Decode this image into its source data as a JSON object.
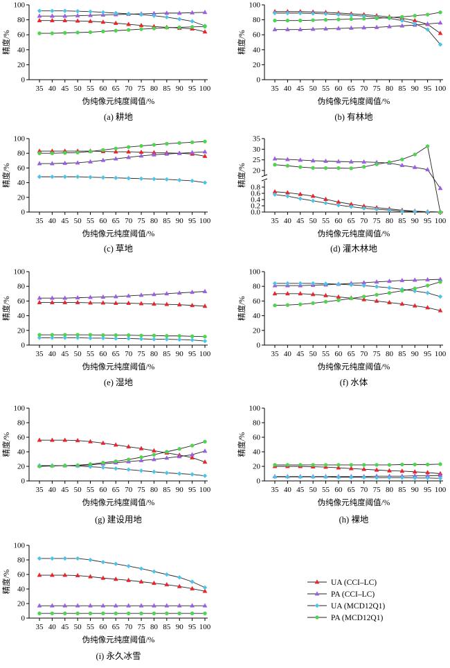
{
  "xlabel": "伪纯像元纯度阈值/%",
  "ylabel": "精度/%",
  "legend": [
    {
      "name": "UA (CCI–LC)",
      "color": "#e8242d",
      "marker": "triangle"
    },
    {
      "name": "PA (CCI–LC)",
      "color": "#9b5de5",
      "marker": "triangle"
    },
    {
      "name": "UA (MCD12Q1)",
      "color": "#4dc3e6",
      "marker": "diamond"
    },
    {
      "name": "PA (MCD12Q1)",
      "color": "#4fd44f",
      "marker": "circle"
    }
  ],
  "chart_data": [
    {
      "type": "line",
      "caption": "(a) 耕地",
      "x": [
        35,
        40,
        45,
        50,
        55,
        60,
        65,
        70,
        75,
        80,
        85,
        90,
        95,
        100
      ],
      "ylim": [
        0,
        100
      ],
      "yticks": [
        0,
        20,
        40,
        60,
        80,
        100
      ],
      "series": [
        {
          "name": "UA (CCI–LC)",
          "values": [
            79,
            79,
            79,
            78.5,
            78,
            77,
            75.5,
            74,
            72.5,
            71,
            70,
            69,
            68,
            64
          ]
        },
        {
          "name": "PA (CCI–LC)",
          "values": [
            85,
            85,
            85,
            85.5,
            86,
            86.5,
            87,
            87.5,
            88,
            88.5,
            89,
            89,
            89.5,
            90
          ]
        },
        {
          "name": "UA (MCD12Q1)",
          "values": [
            92,
            92,
            92,
            91.5,
            91,
            90,
            89,
            88,
            87,
            85.5,
            83.5,
            81,
            78,
            72
          ]
        },
        {
          "name": "PA (MCD12Q1)",
          "values": [
            62,
            62,
            62.5,
            63,
            63.5,
            64.5,
            65.5,
            66.5,
            67.5,
            68.5,
            69.5,
            70,
            70.5,
            71
          ]
        }
      ]
    },
    {
      "type": "line",
      "caption": "(b) 有林地",
      "x": [
        35,
        40,
        45,
        50,
        55,
        60,
        65,
        70,
        75,
        80,
        85,
        90,
        95,
        100
      ],
      "ylim": [
        0,
        100
      ],
      "yticks": [
        0,
        20,
        40,
        60,
        80,
        100
      ],
      "series": [
        {
          "name": "UA (CCI–LC)",
          "values": [
            91,
            91,
            91,
            90.5,
            90,
            89,
            88,
            87,
            85.5,
            84,
            82,
            79,
            74,
            62
          ]
        },
        {
          "name": "PA (CCI–LC)",
          "values": [
            67,
            67,
            67,
            67.5,
            68,
            68.5,
            69,
            69.5,
            70,
            71,
            72,
            73,
            74.5,
            76
          ]
        },
        {
          "name": "UA (MCD12Q1)",
          "values": [
            89,
            89,
            89,
            88.5,
            88,
            87,
            86,
            85,
            83.5,
            82,
            79,
            75,
            67,
            47
          ]
        },
        {
          "name": "PA (MCD12Q1)",
          "values": [
            79,
            79,
            79,
            79.5,
            80,
            80.5,
            81,
            81.5,
            82,
            83,
            84,
            85.5,
            87,
            90
          ]
        }
      ]
    },
    {
      "type": "line",
      "caption": "(c) 草地",
      "x": [
        35,
        40,
        45,
        50,
        55,
        60,
        65,
        70,
        75,
        80,
        85,
        90,
        95,
        100
      ],
      "ylim": [
        0,
        100
      ],
      "yticks": [
        0,
        20,
        40,
        60,
        80,
        100
      ],
      "series": [
        {
          "name": "UA (CCI–LC)",
          "values": [
            83,
            83,
            83,
            83,
            83,
            82.5,
            82,
            82,
            81.5,
            81,
            80.5,
            80,
            79,
            76
          ]
        },
        {
          "name": "PA (CCI–LC)",
          "values": [
            66,
            66,
            66.5,
            67,
            68.5,
            70.5,
            72.5,
            74.5,
            76.5,
            78,
            79,
            80,
            81,
            82
          ]
        },
        {
          "name": "UA (MCD12Q1)",
          "values": [
            48,
            48,
            48,
            48,
            47.5,
            47,
            46.5,
            46,
            45.5,
            45,
            44.5,
            43.5,
            42.5,
            40
          ]
        },
        {
          "name": "PA (MCD12Q1)",
          "values": [
            80,
            80,
            80.5,
            81,
            82.5,
            84.5,
            86.5,
            88.5,
            90,
            91.5,
            93,
            94,
            95,
            96
          ]
        }
      ]
    },
    {
      "type": "line",
      "caption": "(d) 灌木林地",
      "x": [
        35,
        40,
        45,
        50,
        55,
        60,
        65,
        70,
        75,
        80,
        85,
        90,
        95,
        100
      ],
      "broken_y_axis": true,
      "lower_ylim": [
        0,
        0.8
      ],
      "lower_yticks": [
        0,
        0.2,
        0.4,
        0.6,
        0.8
      ],
      "upper_ylim": [
        20,
        35
      ],
      "upper_yticks": [
        20,
        25,
        30,
        35
      ],
      "series": [
        {
          "name": "UA (CCI–LC)",
          "values": [
            0.65,
            0.62,
            0.57,
            0.51,
            0.41,
            0.32,
            0.25,
            0.19,
            0.14,
            0.1,
            0.06,
            0.03,
            0.01,
            0.0
          ]
        },
        {
          "name": "PA (CCI–LC)",
          "values": [
            25.5,
            25.2,
            24.9,
            24.6,
            24.4,
            24.2,
            24.1,
            24,
            23.8,
            23.5,
            22.4,
            21.5,
            20.4,
            0.76
          ]
        },
        {
          "name": "UA (MCD12Q1)",
          "values": [
            0.56,
            0.51,
            0.43,
            0.36,
            0.29,
            0.22,
            0.17,
            0.12,
            0.09,
            0.06,
            0.03,
            0.02,
            0.01,
            0.0
          ]
        },
        {
          "name": "PA (MCD12Q1)",
          "values": [
            22.7,
            22.2,
            21.6,
            21.2,
            21.1,
            21.1,
            21,
            21.7,
            22.9,
            23.9,
            25.2,
            27.5,
            31.4,
            0.0
          ]
        }
      ]
    },
    {
      "type": "line",
      "caption": "(e) 湿地",
      "x": [
        35,
        40,
        45,
        50,
        55,
        60,
        65,
        70,
        75,
        80,
        85,
        90,
        95,
        100
      ],
      "ylim": [
        0,
        100
      ],
      "yticks": [
        0,
        20,
        40,
        60,
        80,
        100
      ],
      "series": [
        {
          "name": "UA (CCI–LC)",
          "values": [
            58,
            58,
            58,
            58,
            57.5,
            57.5,
            57,
            57,
            56.5,
            56,
            55.5,
            55,
            54,
            53
          ]
        },
        {
          "name": "PA (CCI–LC)",
          "values": [
            64,
            64,
            64,
            64.5,
            65,
            65.5,
            66,
            67,
            68,
            69,
            70,
            71,
            72,
            73
          ]
        },
        {
          "name": "UA (MCD12Q1)",
          "values": [
            10,
            10,
            10,
            10,
            9.5,
            9.5,
            9,
            9,
            8.5,
            8,
            8,
            7.5,
            7,
            5.5
          ]
        },
        {
          "name": "PA (MCD12Q1)",
          "values": [
            14,
            14,
            14,
            14,
            14,
            13.5,
            13.5,
            13.5,
            13,
            13,
            12.5,
            12.5,
            12,
            11.5
          ]
        }
      ]
    },
    {
      "type": "line",
      "caption": "(f) 水体",
      "x": [
        35,
        40,
        45,
        50,
        55,
        60,
        65,
        70,
        75,
        80,
        85,
        90,
        95,
        100
      ],
      "ylim": [
        0,
        100
      ],
      "yticks": [
        0,
        20,
        40,
        60,
        80,
        100
      ],
      "series": [
        {
          "name": "UA (CCI–LC)",
          "values": [
            70,
            70,
            70,
            69,
            67.5,
            65.5,
            64,
            62,
            60,
            58,
            56,
            53.5,
            51,
            47
          ]
        },
        {
          "name": "PA (CCI–LC)",
          "values": [
            81,
            81,
            81,
            81.5,
            82,
            83,
            84,
            85,
            86,
            87,
            88,
            88.5,
            89,
            89.5
          ]
        },
        {
          "name": "UA (MCD12Q1)",
          "values": [
            84,
            84,
            84,
            84,
            83.5,
            83,
            82,
            81,
            79.5,
            78,
            76,
            73.5,
            71,
            66
          ]
        },
        {
          "name": "PA (MCD12Q1)",
          "values": [
            54,
            54.5,
            55.5,
            57,
            59,
            61,
            63.5,
            66,
            68.5,
            71,
            74,
            77,
            81,
            86
          ]
        }
      ]
    },
    {
      "type": "line",
      "caption": "(g) 建设用地",
      "x": [
        35,
        40,
        45,
        50,
        55,
        60,
        65,
        70,
        75,
        80,
        85,
        90,
        95,
        100
      ],
      "ylim": [
        0,
        100
      ],
      "yticks": [
        0,
        20,
        40,
        60,
        80,
        100
      ],
      "series": [
        {
          "name": "UA (CCI–LC)",
          "values": [
            56,
            56,
            56,
            55.5,
            54,
            52,
            49.5,
            47,
            44.5,
            41.5,
            38.5,
            35.5,
            32,
            26
          ]
        },
        {
          "name": "PA (CCI–LC)",
          "values": [
            21,
            21,
            21,
            21,
            22,
            23.5,
            25,
            26.5,
            28,
            29.5,
            31.5,
            33.5,
            36,
            41
          ]
        },
        {
          "name": "UA (MCD12Q1)",
          "values": [
            21,
            21,
            21,
            20.5,
            19.5,
            18.5,
            17,
            15.5,
            14,
            12.5,
            11,
            10,
            9,
            7
          ]
        },
        {
          "name": "PA (MCD12Q1)",
          "values": [
            20,
            20.5,
            21,
            21.5,
            23,
            25,
            27,
            29.5,
            32.5,
            36,
            40,
            44,
            48.5,
            54
          ]
        }
      ]
    },
    {
      "type": "line",
      "caption": "(h) 裸地",
      "x": [
        35,
        40,
        45,
        50,
        55,
        60,
        65,
        70,
        75,
        80,
        85,
        90,
        95,
        100
      ],
      "ylim": [
        0,
        100
      ],
      "yticks": [
        0,
        20,
        40,
        60,
        80,
        100
      ],
      "series": [
        {
          "name": "UA (CCI–LC)",
          "values": [
            20,
            20,
            20,
            19.5,
            19,
            18,
            17,
            16,
            15,
            14,
            13.5,
            12.5,
            11.5,
            10
          ]
        },
        {
          "name": "PA (CCI–LC)",
          "values": [
            6,
            6,
            6,
            6,
            6,
            6,
            6,
            6,
            6.5,
            6.5,
            6.5,
            7,
            7,
            7.5
          ]
        },
        {
          "name": "UA (MCD12Q1)",
          "values": [
            5.5,
            5.5,
            5.5,
            5.5,
            5.5,
            5,
            5,
            5,
            4.5,
            4.5,
            4.5,
            4,
            4,
            3.5
          ]
        },
        {
          "name": "PA (MCD12Q1)",
          "values": [
            22,
            22,
            22,
            22,
            22,
            22,
            22,
            22,
            22,
            22,
            22.5,
            22.5,
            22.5,
            23
          ]
        }
      ]
    },
    {
      "type": "line",
      "caption": "(i) 永久冰雪",
      "x": [
        35,
        40,
        45,
        50,
        55,
        60,
        65,
        70,
        75,
        80,
        85,
        90,
        95,
        100
      ],
      "ylim": [
        0,
        100
      ],
      "yticks": [
        0,
        20,
        40,
        60,
        80,
        100
      ],
      "series": [
        {
          "name": "UA (CCI–LC)",
          "values": [
            59,
            59,
            59,
            58.5,
            57,
            55,
            53.5,
            52,
            50,
            48,
            46,
            43.5,
            40.5,
            37
          ]
        },
        {
          "name": "PA (CCI–LC)",
          "values": [
            17,
            17,
            17,
            17,
            17,
            17,
            17,
            17,
            17,
            17,
            17,
            17,
            17,
            17
          ]
        },
        {
          "name": "UA (MCD12Q1)",
          "values": [
            82,
            82,
            82,
            82,
            80,
            77,
            74.5,
            71.5,
            68,
            64,
            60,
            56,
            50,
            42
          ]
        },
        {
          "name": "PA (MCD12Q1)",
          "values": [
            6.5,
            6.5,
            6.5,
            6.5,
            6.5,
            6.5,
            6.5,
            6.5,
            6.5,
            6.5,
            6.5,
            6.5,
            6.5,
            6.5
          ]
        }
      ]
    }
  ]
}
